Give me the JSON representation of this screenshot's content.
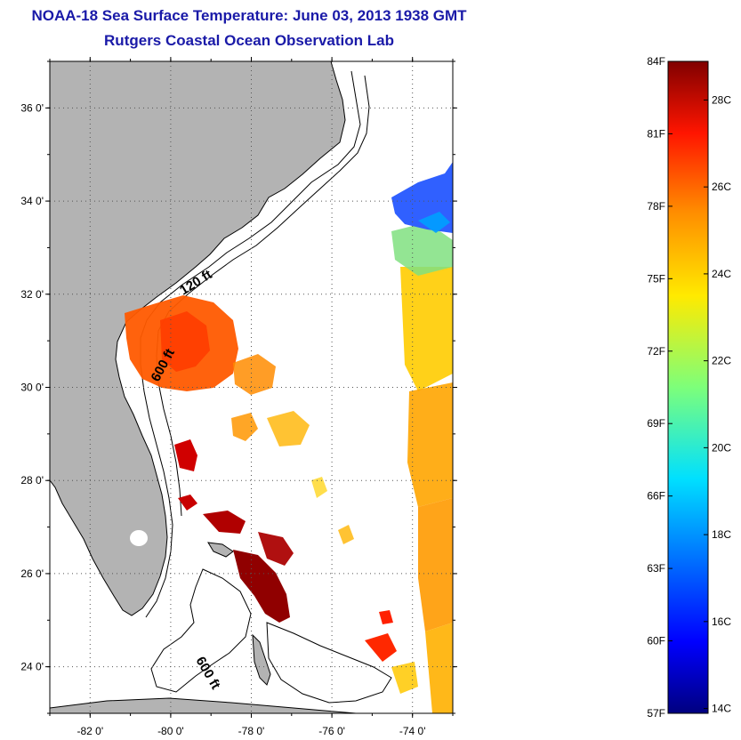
{
  "header": {
    "title": "NOAA-18 Sea Surface Temperature:  June 03, 2013 1938 GMT",
    "subtitle": "Rutgers Coastal Ocean Observation Lab"
  },
  "map": {
    "latitude_ticks": [
      "36 0'",
      "34 0'",
      "32 0'",
      "30 0'",
      "28 0'",
      "26 0'",
      "24 0'"
    ],
    "longitude_ticks": [
      "-82 0'",
      "-80 0'",
      "-78 0'",
      "-76 0'",
      "-74 0'"
    ],
    "lat_range": [
      23,
      37
    ],
    "lon_range": [
      -83,
      -73
    ],
    "grid": "dotted",
    "land_color": "#b3b3b3",
    "contour_labels": [
      "120 ft",
      "600 ft",
      "600 ft"
    ]
  },
  "colorbar": {
    "left_labels": [
      "84F",
      "81F",
      "78F",
      "75F",
      "72F",
      "69F",
      "66F",
      "63F",
      "60F",
      "57F"
    ],
    "right_labels": [
      "28C",
      "26C",
      "24C",
      "22C",
      "20C",
      "18C",
      "16C",
      "14C"
    ],
    "colormap": "jet",
    "range_F": [
      57,
      84
    ]
  }
}
